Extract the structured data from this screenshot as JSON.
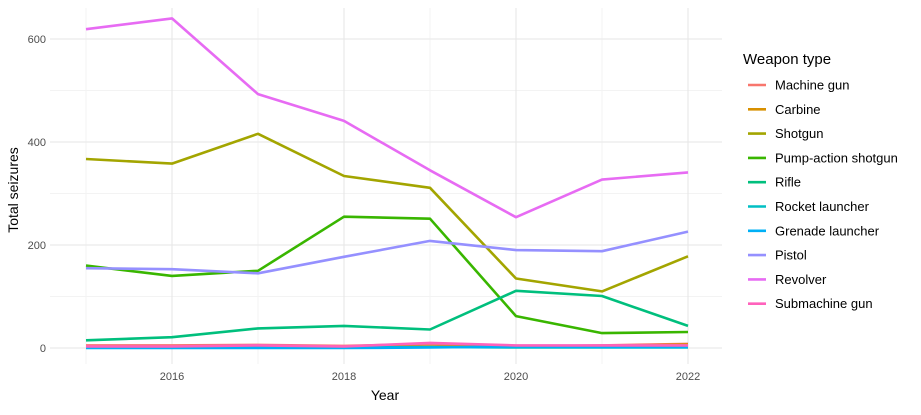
{
  "chart_data": {
    "type": "line",
    "xlabel": "Year",
    "ylabel": "Total seizures",
    "xlim": [
      2015,
      2022
    ],
    "ylim": [
      -10,
      640
    ],
    "x_ticks": [
      2016,
      2018,
      2020,
      2022
    ],
    "y_ticks": [
      0,
      200,
      400,
      600
    ],
    "grid": true,
    "legend": {
      "title": "Weapon type",
      "position": "right"
    },
    "x": [
      2015,
      2016,
      2017,
      2018,
      2019,
      2020,
      2021,
      2022
    ],
    "series": [
      {
        "name": "Machine gun",
        "color": "#F8766D",
        "values": [
          5,
          5,
          6,
          4,
          8,
          3,
          5,
          8
        ]
      },
      {
        "name": "Carbine",
        "color": "#D89000",
        "values": [
          2,
          2,
          2,
          2,
          3,
          2,
          3,
          7
        ]
      },
      {
        "name": "Shotgun",
        "color": "#A3A500",
        "values": [
          367,
          358,
          416,
          334,
          311,
          135,
          110,
          178
        ]
      },
      {
        "name": "Pump-action shotgun",
        "color": "#39B600",
        "values": [
          160,
          140,
          150,
          255,
          251,
          62,
          29,
          31
        ]
      },
      {
        "name": "Rifle",
        "color": "#00BF7D",
        "values": [
          15,
          21,
          38,
          43,
          36,
          111,
          101,
          43
        ]
      },
      {
        "name": "Rocket launcher",
        "color": "#00BFC4",
        "values": [
          1,
          1,
          1,
          1,
          2,
          1,
          1,
          1
        ]
      },
      {
        "name": "Grenade launcher",
        "color": "#00B0F6",
        "values": [
          0,
          0,
          0,
          0,
          1,
          3,
          2,
          2
        ]
      },
      {
        "name": "Pistol",
        "color": "#9590FF",
        "values": [
          155,
          153,
          145,
          177,
          208,
          190,
          188,
          226
        ]
      },
      {
        "name": "Revolver",
        "color": "#E76BF3",
        "values": [
          619,
          640,
          493,
          441,
          345,
          254,
          327,
          341
        ]
      },
      {
        "name": "Submachine gun",
        "color": "#FF62BC",
        "values": [
          3,
          3,
          5,
          3,
          10,
          5,
          5,
          5
        ]
      }
    ]
  }
}
